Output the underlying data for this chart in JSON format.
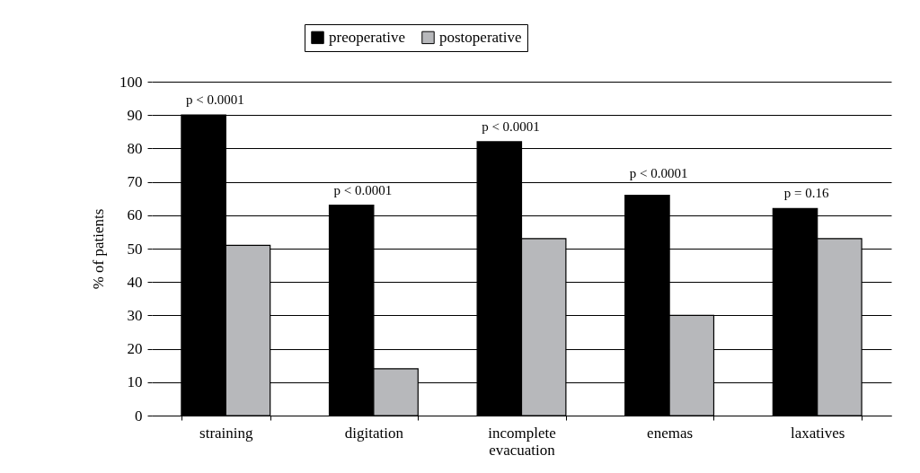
{
  "chart_data": {
    "type": "bar",
    "ylabel": "% of patients",
    "categories": [
      "straining",
      "digitation",
      "incomplete evacuation",
      "enemas",
      "laxatives"
    ],
    "series": [
      {
        "name": "preoperative",
        "color": "#000000",
        "values": [
          90,
          63,
          82,
          66,
          62
        ]
      },
      {
        "name": "postoperative",
        "color": "#b7b8bb",
        "values": [
          51,
          14,
          53,
          30,
          53
        ]
      }
    ],
    "ylim": [
      0,
      100
    ],
    "yticks": [
      0,
      10,
      20,
      30,
      40,
      50,
      60,
      70,
      80,
      90,
      100
    ],
    "grid": "y",
    "legend": "top",
    "annotations": [
      {
        "text": "p < 0.0001",
        "x": "straining",
        "y": 90
      },
      {
        "text": "p < 0.0001",
        "x": "digitation",
        "y": 63
      },
      {
        "text": "p < 0.0001",
        "x": "incomplete evacuation",
        "y": 82
      },
      {
        "text": "p < 0.0001",
        "x": "enemas",
        "y": 66
      },
      {
        "text": "p = 0.16",
        "x": "laxatives",
        "y": 62
      }
    ]
  }
}
